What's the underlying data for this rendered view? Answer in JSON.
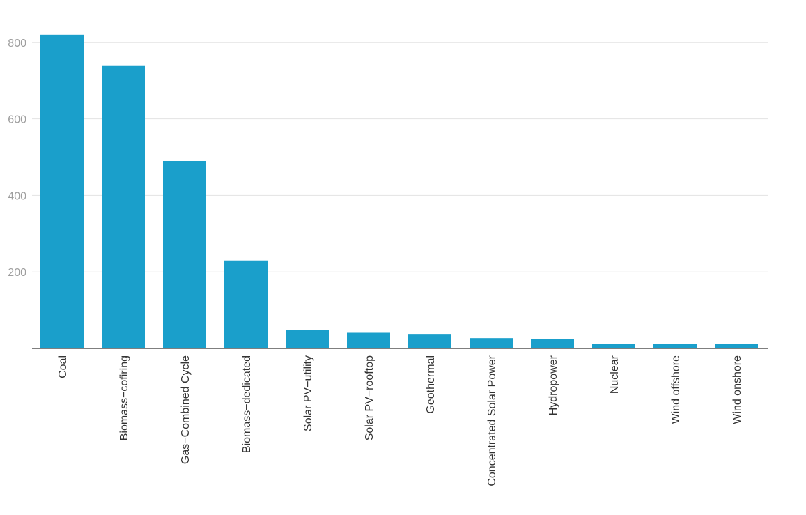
{
  "colors": {
    "bar": "#1a9fcb",
    "grid": "#e3e3e3",
    "axis": "#333333",
    "tick_text": "#9e9e9e"
  },
  "chart_data": {
    "type": "bar",
    "title": "",
    "xlabel": "",
    "ylabel": "",
    "ylim": [
      0,
      840
    ],
    "yticks": [
      200,
      400,
      600,
      800
    ],
    "grid": true,
    "categories": [
      "Coal",
      "Biomass−cofiring",
      "Gas−Combined Cycle",
      "Biomass−dedicated",
      "Solar PV−utility",
      "Solar PV−rooftop",
      "Geothermal",
      "Concentrated Solar Power",
      "Hydropower",
      "Nuclear",
      "Wind offshore",
      "Wind onshore"
    ],
    "values": [
      820,
      740,
      490,
      230,
      48,
      41,
      38,
      27,
      24,
      12,
      12,
      11
    ]
  }
}
